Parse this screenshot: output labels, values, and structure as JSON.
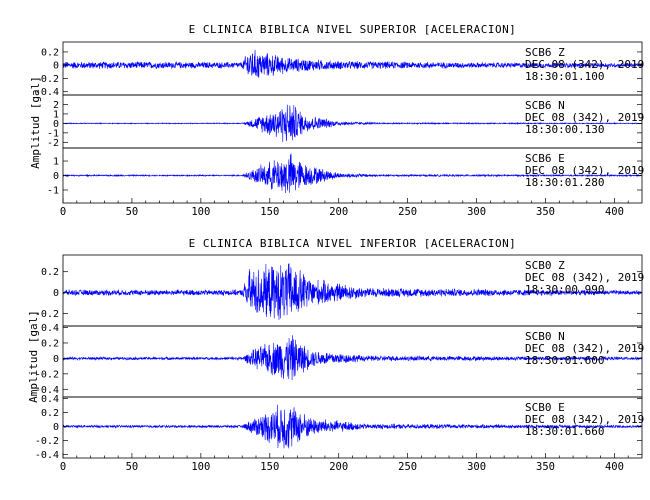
{
  "chart_data": [
    {
      "type": "line",
      "title": "E CLINICA BIBLICA NIVEL SUPERIOR [ACELERACION]",
      "ylabel": "Amplitud [gal]",
      "xlim": [
        0,
        420
      ],
      "x_ticks": [
        0,
        50,
        100,
        150,
        200,
        250,
        300,
        350,
        400
      ],
      "color": "#0000ff",
      "traces": [
        {
          "station": "SCB6",
          "component": "Z",
          "date": "DEC 08 (342), 2019",
          "time": "18:30:01.100",
          "ylim": [
            -0.45,
            0.35
          ],
          "yticks": [
            -0.4,
            -0.2,
            0.0,
            0.2
          ],
          "envelope": [
            [
              0,
              0.06
            ],
            [
              40,
              0.06
            ],
            [
              130,
              0.05
            ],
            [
              135,
              0.28
            ],
            [
              145,
              0.22
            ],
            [
              165,
              0.12
            ],
            [
              200,
              0.07
            ],
            [
              300,
              0.045
            ],
            [
              420,
              0.035
            ]
          ]
        },
        {
          "station": "SCB6",
          "component": "N",
          "date": "DEC 08 (342), 2019",
          "time": "18:30:00.130",
          "ylim": [
            -2.6,
            3.0
          ],
          "yticks": [
            -2,
            -1,
            0,
            1,
            2
          ],
          "envelope": [
            [
              0,
              0.05
            ],
            [
              130,
              0.05
            ],
            [
              140,
              0.7
            ],
            [
              165,
              2.6
            ],
            [
              175,
              1.1
            ],
            [
              200,
              0.25
            ],
            [
              230,
              0.08
            ],
            [
              420,
              0.05
            ]
          ]
        },
        {
          "station": "SCB6",
          "component": "E",
          "date": "DEC 08 (342), 2019",
          "time": "18:30:01.280",
          "ylim": [
            -1.9,
            1.9
          ],
          "yticks": [
            -1,
            0,
            1
          ],
          "envelope": [
            [
              0,
              0.05
            ],
            [
              130,
              0.05
            ],
            [
              140,
              0.6
            ],
            [
              165,
              1.7
            ],
            [
              175,
              0.9
            ],
            [
              200,
              0.2
            ],
            [
              230,
              0.08
            ],
            [
              420,
              0.05
            ]
          ]
        }
      ]
    },
    {
      "type": "line",
      "title": "E CLINICA BIBLICA NIVEL INFERIOR [ACELERACION]",
      "ylabel": "Amplitud [gal]",
      "xlim": [
        0,
        420
      ],
      "x_ticks": [
        0,
        50,
        100,
        150,
        200,
        250,
        300,
        350,
        400
      ],
      "color": "#0000ff",
      "traces": [
        {
          "station": "SCB0",
          "component": "Z",
          "date": "DEC 08 (342), 2019",
          "time": "18:30:00.990",
          "ylim": [
            -0.32,
            0.36
          ],
          "yticks": [
            -0.2,
            0.0,
            0.2
          ],
          "envelope": [
            [
              0,
              0.03
            ],
            [
              130,
              0.03
            ],
            [
              135,
              0.25
            ],
            [
              165,
              0.32
            ],
            [
              180,
              0.15
            ],
            [
              220,
              0.05
            ],
            [
              420,
              0.02
            ]
          ]
        },
        {
          "station": "SCB0",
          "component": "N",
          "date": "DEC 08 (342), 2019",
          "time": "18:30:01.600",
          "ylim": [
            -0.5,
            0.42
          ],
          "yticks": [
            -0.4,
            -0.2,
            0.0,
            0.2,
            0.4
          ],
          "envelope": [
            [
              0,
              0.02
            ],
            [
              130,
              0.02
            ],
            [
              140,
              0.15
            ],
            [
              165,
              0.35
            ],
            [
              180,
              0.12
            ],
            [
              220,
              0.04
            ],
            [
              420,
              0.02
            ]
          ]
        },
        {
          "station": "SCB0",
          "component": "E",
          "date": "DEC 08 (342), 2019",
          "time": "18:30:01.660",
          "ylim": [
            -0.45,
            0.42
          ],
          "yticks": [
            -0.4,
            -0.2,
            0.0,
            0.2,
            0.4
          ],
          "envelope": [
            [
              0,
              0.02
            ],
            [
              130,
              0.02
            ],
            [
              140,
              0.15
            ],
            [
              162,
              0.4
            ],
            [
              180,
              0.14
            ],
            [
              220,
              0.04
            ],
            [
              420,
              0.02
            ]
          ]
        }
      ]
    }
  ]
}
